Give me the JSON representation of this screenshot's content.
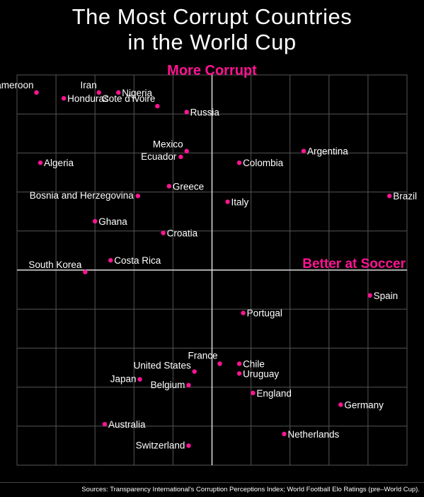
{
  "title_line1": "The Most Corrupt Countries",
  "title_line2": "in the World Cup",
  "source": "Sources: Transparency International's Corruption Perceptions Index; World Football Elo Ratings (pre–World Cup).",
  "accent_color": "#ff1493",
  "chart_data": {
    "type": "scatter",
    "title": "The Most Corrupt Countries in the World Cup",
    "y_axis_label": "More Corrupt",
    "x_axis_label": "Better at Soccer",
    "xlim": [
      0,
      10
    ],
    "ylim": [
      0,
      10
    ],
    "grid": true,
    "points": [
      {
        "label": "Cameroon",
        "x": 0.5,
        "y": 9.55
      },
      {
        "label": "Iran",
        "x": 2.1,
        "y": 9.55
      },
      {
        "label": "Nigeria",
        "x": 2.6,
        "y": 9.55
      },
      {
        "label": "Honduras",
        "x": 1.2,
        "y": 9.4
      },
      {
        "label": "Cote d'Ivoire",
        "x": 3.6,
        "y": 9.2
      },
      {
        "label": "Russia",
        "x": 4.35,
        "y": 9.05
      },
      {
        "label": "Mexico",
        "x": 4.35,
        "y": 8.05
      },
      {
        "label": "Argentina",
        "x": 7.35,
        "y": 8.05
      },
      {
        "label": "Ecuador",
        "x": 4.2,
        "y": 7.9
      },
      {
        "label": "Algeria",
        "x": 0.6,
        "y": 7.75
      },
      {
        "label": "Colombia",
        "x": 5.7,
        "y": 7.75
      },
      {
        "label": "Greece",
        "x": 3.9,
        "y": 7.15
      },
      {
        "label": "Bosnia and Herzegovina",
        "x": 3.1,
        "y": 6.9
      },
      {
        "label": "Brazil",
        "x": 9.55,
        "y": 6.9
      },
      {
        "label": "Italy",
        "x": 5.4,
        "y": 6.75
      },
      {
        "label": "Ghana",
        "x": 2.0,
        "y": 6.25
      },
      {
        "label": "Croatia",
        "x": 3.75,
        "y": 5.95
      },
      {
        "label": "Costa Rica",
        "x": 2.4,
        "y": 5.25
      },
      {
        "label": "South Korea",
        "x": 1.75,
        "y": 4.95
      },
      {
        "label": "Spain",
        "x": 9.05,
        "y": 4.35
      },
      {
        "label": "Portugal",
        "x": 5.8,
        "y": 3.9
      },
      {
        "label": "France",
        "x": 5.2,
        "y": 2.6
      },
      {
        "label": "Chile",
        "x": 5.7,
        "y": 2.6
      },
      {
        "label": "United States",
        "x": 4.55,
        "y": 2.4
      },
      {
        "label": "Uruguay",
        "x": 5.7,
        "y": 2.35
      },
      {
        "label": "Japan",
        "x": 3.15,
        "y": 2.2
      },
      {
        "label": "Belgium",
        "x": 4.4,
        "y": 2.05
      },
      {
        "label": "England",
        "x": 6.05,
        "y": 1.85
      },
      {
        "label": "Germany",
        "x": 8.3,
        "y": 1.55
      },
      {
        "label": "Australia",
        "x": 2.25,
        "y": 1.05
      },
      {
        "label": "Netherlands",
        "x": 6.85,
        "y": 0.8
      },
      {
        "label": "Switzerland",
        "x": 4.4,
        "y": 0.5
      }
    ]
  }
}
